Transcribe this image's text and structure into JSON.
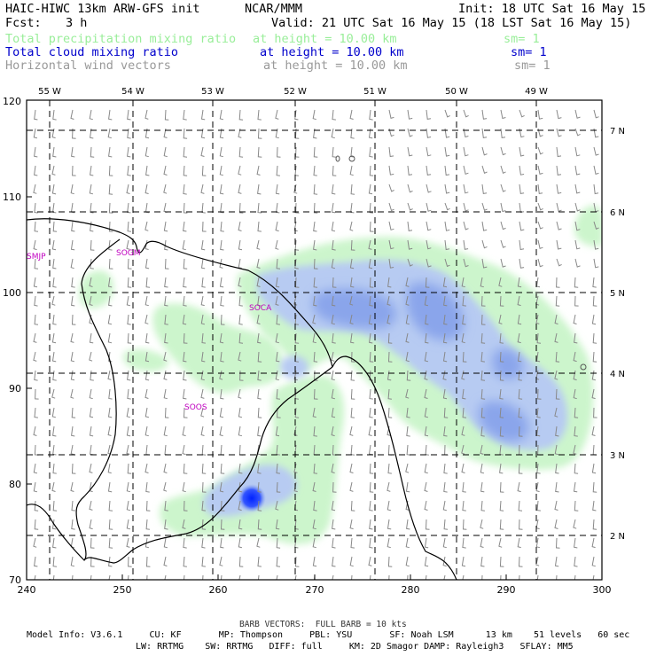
{
  "header": {
    "model_title": "HAIC-HIWC 13km ARW-GFS init",
    "org": "NCAR/MMM",
    "init": "Init: 18 UTC Sat 16 May 15",
    "fcst_label": "Fcst:",
    "fcst_value": "3 h",
    "valid": "Valid: 21 UTC Sat 16 May 15 (18 LST Sat 16 May 15)"
  },
  "fields": [
    {
      "name": "Total precipitation mixing ratio",
      "level": "at height = 10.00 km",
      "smooth": "sm= 1",
      "color": "#99ee99"
    },
    {
      "name": "Total cloud mixing ratio",
      "level": "at height = 10.00 km",
      "smooth": "sm= 1",
      "color": "#0000cc"
    },
    {
      "name": "Horizontal wind vectors",
      "level": "at height = 10.00 km",
      "smooth": "sm= 1",
      "color": "#999999"
    }
  ],
  "axes": {
    "x_ticks": [
      "240",
      "250",
      "260",
      "270",
      "280",
      "290",
      "300"
    ],
    "y_ticks": [
      "70",
      "80",
      "90",
      "100",
      "110",
      "120"
    ],
    "lon_labels": [
      "55 W",
      "54 W",
      "53 W",
      "52 W",
      "51 W",
      "50 W",
      "49 W"
    ],
    "lat_labels": [
      "7 N",
      "6 N",
      "5 N",
      "4 N",
      "3 N",
      "2 N"
    ]
  },
  "stations": [
    "SMJP",
    "SOGM",
    "SOCA",
    "SOOS"
  ],
  "footer": {
    "barb_note": "BARB VECTORS:  FULL BARB = 10 kts",
    "model_info_1": "Model Info: V3.6.1     CU: KF       MP: Thompson     PBL: YSU       SF: Noah LSM      13 km    51 levels   60 sec",
    "model_info_2": "LW: RRTMG    SW: RRTMG   DIFF: full     KM: 2D Smagor DAMP: Rayleigh3   SFLAY: MM5"
  },
  "colors": {
    "precip": "#ccf5cc",
    "cloud_light": "#b7cbf2",
    "cloud_mid": "#8aa5eb",
    "cloud_strong": "#0022ff",
    "station": "#c000c0",
    "barb": "#888888"
  }
}
